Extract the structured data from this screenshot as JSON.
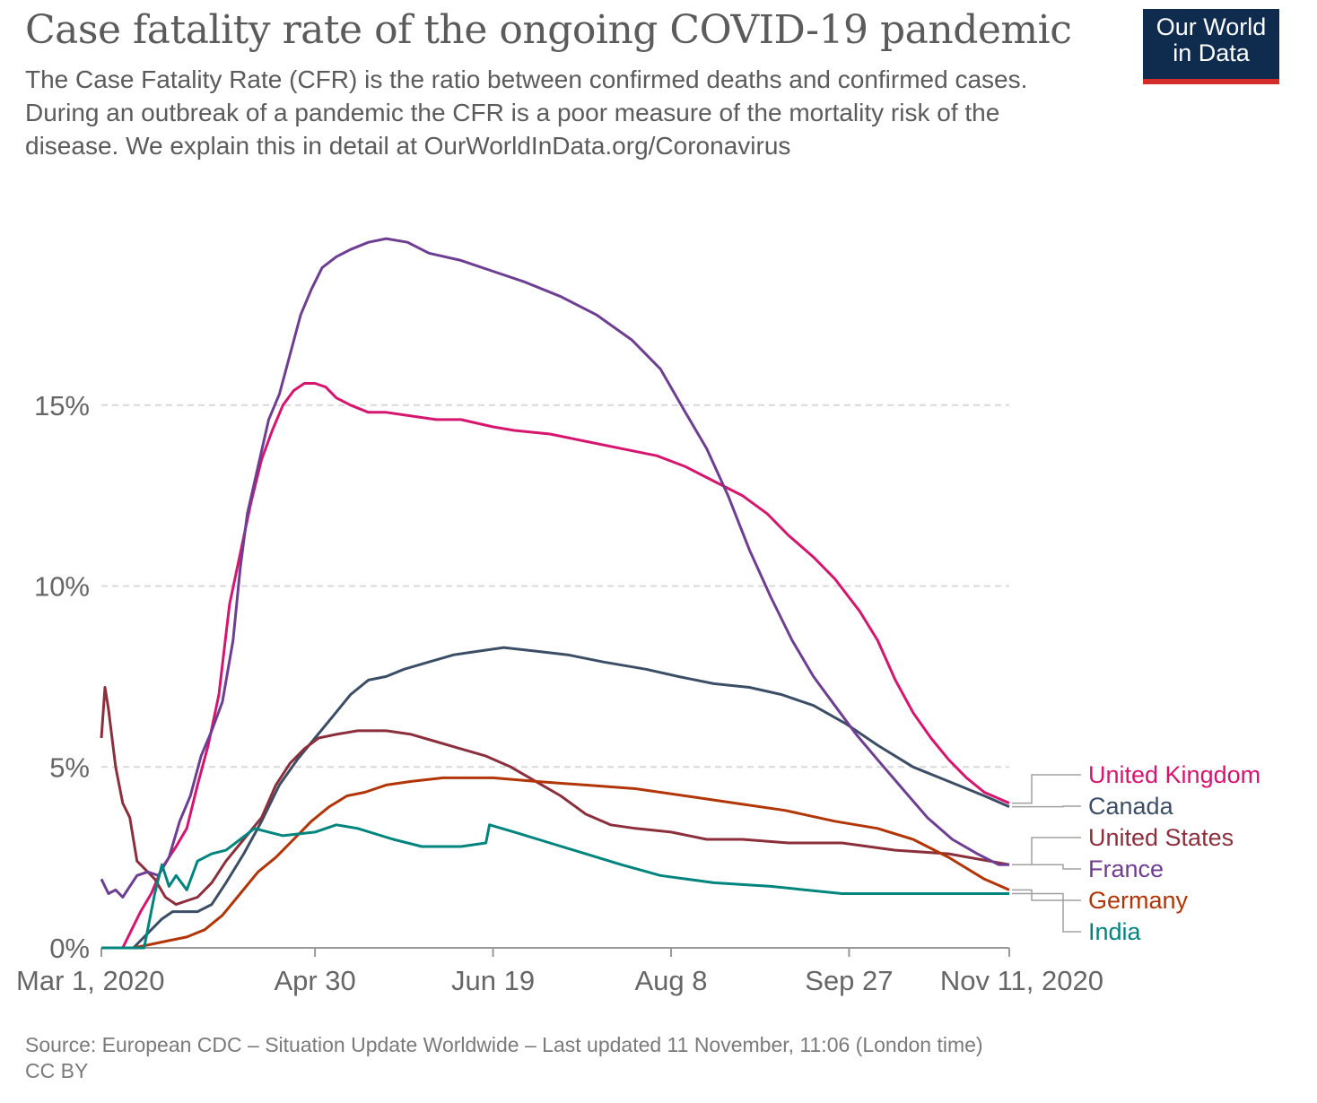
{
  "header": {
    "title": "Case fatality rate of the ongoing COVID-19 pandemic",
    "subtitle": "The Case Fatality Rate (CFR) is the ratio between confirmed deaths and confirmed cases. During an outbreak of a pandemic the CFR is a poor measure of the mortality risk of the disease. We explain this in detail at OurWorldInData.org/Coronavirus"
  },
  "logo": {
    "line1": "Our World",
    "line2": "in Data",
    "bg_color": "#0f2c4f",
    "accent_color": "#d42b2b"
  },
  "footer": {
    "source": "Source: European CDC – Situation Update Worldwide – Last updated 11 November, 11:06 (London time)",
    "license": "CC BY"
  },
  "chart_data": {
    "type": "line",
    "x_unit": "date",
    "x_range": [
      "2020-03-01",
      "2020-11-11"
    ],
    "x_ticks": [
      {
        "date": "2020-03-01",
        "label": "Mar 1, 2020"
      },
      {
        "date": "2020-04-30",
        "label": "Apr 30"
      },
      {
        "date": "2020-06-19",
        "label": "Jun 19"
      },
      {
        "date": "2020-08-08",
        "label": "Aug 8"
      },
      {
        "date": "2020-09-27",
        "label": "Sep 27"
      },
      {
        "date": "2020-11-11",
        "label": "Nov 11, 2020"
      }
    ],
    "ylim": [
      0,
      20
    ],
    "y_ticks": [
      {
        "value": 0,
        "label": "0%"
      },
      {
        "value": 5,
        "label": "5%"
      },
      {
        "value": 10,
        "label": "10%"
      },
      {
        "value": 15,
        "label": "15%"
      }
    ],
    "grid": "horizontal dashed",
    "legend_position": "right, at line ends",
    "series": [
      {
        "name": "United Kingdom",
        "color": "#d6156f",
        "points": [
          [
            "2020-03-01",
            0
          ],
          [
            "2020-03-07",
            0
          ],
          [
            "2020-03-10",
            0.6
          ],
          [
            "2020-03-12",
            1.0
          ],
          [
            "2020-03-15",
            1.5
          ],
          [
            "2020-03-18",
            2.2
          ],
          [
            "2020-03-22",
            2.8
          ],
          [
            "2020-03-25",
            3.3
          ],
          [
            "2020-03-28",
            4.5
          ],
          [
            "2020-03-31",
            5.6
          ],
          [
            "2020-04-03",
            7.0
          ],
          [
            "2020-04-06",
            9.5
          ],
          [
            "2020-04-09",
            10.9
          ],
          [
            "2020-04-12",
            12.3
          ],
          [
            "2020-04-15",
            13.5
          ],
          [
            "2020-04-18",
            14.3
          ],
          [
            "2020-04-21",
            15.0
          ],
          [
            "2020-04-24",
            15.4
          ],
          [
            "2020-04-27",
            15.6
          ],
          [
            "2020-04-30",
            15.6
          ],
          [
            "2020-05-03",
            15.5
          ],
          [
            "2020-05-06",
            15.2
          ],
          [
            "2020-05-10",
            15.0
          ],
          [
            "2020-05-15",
            14.8
          ],
          [
            "2020-05-20",
            14.8
          ],
          [
            "2020-05-27",
            14.7
          ],
          [
            "2020-06-03",
            14.6
          ],
          [
            "2020-06-10",
            14.6
          ],
          [
            "2020-06-19",
            14.4
          ],
          [
            "2020-06-25",
            14.3
          ],
          [
            "2020-07-05",
            14.2
          ],
          [
            "2020-07-15",
            14.0
          ],
          [
            "2020-07-25",
            13.8
          ],
          [
            "2020-08-04",
            13.6
          ],
          [
            "2020-08-12",
            13.3
          ],
          [
            "2020-08-20",
            12.9
          ],
          [
            "2020-08-28",
            12.5
          ],
          [
            "2020-09-04",
            12.0
          ],
          [
            "2020-09-10",
            11.4
          ],
          [
            "2020-09-17",
            10.8
          ],
          [
            "2020-09-23",
            10.2
          ],
          [
            "2020-09-30",
            9.3
          ],
          [
            "2020-10-05",
            8.5
          ],
          [
            "2020-10-10",
            7.4
          ],
          [
            "2020-10-15",
            6.5
          ],
          [
            "2020-10-20",
            5.8
          ],
          [
            "2020-10-25",
            5.2
          ],
          [
            "2020-10-30",
            4.7
          ],
          [
            "2020-11-04",
            4.3
          ],
          [
            "2020-11-11",
            4.0
          ]
        ]
      },
      {
        "name": "Canada",
        "color": "#3c4e66",
        "points": [
          [
            "2020-03-01",
            0
          ],
          [
            "2020-03-10",
            0
          ],
          [
            "2020-03-15",
            0.5
          ],
          [
            "2020-03-18",
            0.8
          ],
          [
            "2020-03-21",
            1.0
          ],
          [
            "2020-03-24",
            1.0
          ],
          [
            "2020-03-28",
            1.0
          ],
          [
            "2020-04-01",
            1.2
          ],
          [
            "2020-04-05",
            1.8
          ],
          [
            "2020-04-10",
            2.6
          ],
          [
            "2020-04-15",
            3.5
          ],
          [
            "2020-04-20",
            4.5
          ],
          [
            "2020-04-25",
            5.2
          ],
          [
            "2020-04-30",
            5.8
          ],
          [
            "2020-05-05",
            6.4
          ],
          [
            "2020-05-10",
            7.0
          ],
          [
            "2020-05-15",
            7.4
          ],
          [
            "2020-05-20",
            7.5
          ],
          [
            "2020-05-25",
            7.7
          ],
          [
            "2020-06-01",
            7.9
          ],
          [
            "2020-06-08",
            8.1
          ],
          [
            "2020-06-15",
            8.2
          ],
          [
            "2020-06-22",
            8.3
          ],
          [
            "2020-07-01",
            8.2
          ],
          [
            "2020-07-10",
            8.1
          ],
          [
            "2020-07-20",
            7.9
          ],
          [
            "2020-08-01",
            7.7
          ],
          [
            "2020-08-10",
            7.5
          ],
          [
            "2020-08-20",
            7.3
          ],
          [
            "2020-08-30",
            7.2
          ],
          [
            "2020-09-08",
            7.0
          ],
          [
            "2020-09-17",
            6.7
          ],
          [
            "2020-09-26",
            6.2
          ],
          [
            "2020-10-05",
            5.6
          ],
          [
            "2020-10-15",
            5.0
          ],
          [
            "2020-10-25",
            4.6
          ],
          [
            "2020-11-04",
            4.2
          ],
          [
            "2020-11-11",
            3.9
          ]
        ]
      },
      {
        "name": "United States",
        "color": "#8b2f3c",
        "points": [
          [
            "2020-03-01",
            5.8
          ],
          [
            "2020-03-02",
            7.2
          ],
          [
            "2020-03-03",
            6.6
          ],
          [
            "2020-03-05",
            5.0
          ],
          [
            "2020-03-07",
            4.0
          ],
          [
            "2020-03-09",
            3.6
          ],
          [
            "2020-03-11",
            2.4
          ],
          [
            "2020-03-13",
            2.2
          ],
          [
            "2020-03-16",
            1.9
          ],
          [
            "2020-03-19",
            1.4
          ],
          [
            "2020-03-22",
            1.2
          ],
          [
            "2020-03-25",
            1.3
          ],
          [
            "2020-03-28",
            1.4
          ],
          [
            "2020-04-01",
            1.8
          ],
          [
            "2020-04-05",
            2.4
          ],
          [
            "2020-04-10",
            3.0
          ],
          [
            "2020-04-15",
            3.6
          ],
          [
            "2020-04-19",
            4.5
          ],
          [
            "2020-04-23",
            5.1
          ],
          [
            "2020-04-27",
            5.5
          ],
          [
            "2020-05-01",
            5.8
          ],
          [
            "2020-05-06",
            5.9
          ],
          [
            "2020-05-12",
            6.0
          ],
          [
            "2020-05-20",
            6.0
          ],
          [
            "2020-05-27",
            5.9
          ],
          [
            "2020-06-03",
            5.7
          ],
          [
            "2020-06-10",
            5.5
          ],
          [
            "2020-06-17",
            5.3
          ],
          [
            "2020-06-24",
            5.0
          ],
          [
            "2020-07-01",
            4.6
          ],
          [
            "2020-07-08",
            4.2
          ],
          [
            "2020-07-15",
            3.7
          ],
          [
            "2020-07-22",
            3.4
          ],
          [
            "2020-07-29",
            3.3
          ],
          [
            "2020-08-08",
            3.2
          ],
          [
            "2020-08-18",
            3.0
          ],
          [
            "2020-08-28",
            3.0
          ],
          [
            "2020-09-10",
            2.9
          ],
          [
            "2020-09-25",
            2.9
          ],
          [
            "2020-10-10",
            2.7
          ],
          [
            "2020-10-25",
            2.6
          ],
          [
            "2020-11-11",
            2.3
          ]
        ]
      },
      {
        "name": "France",
        "color": "#6d3e91",
        "points": [
          [
            "2020-03-01",
            1.9
          ],
          [
            "2020-03-03",
            1.5
          ],
          [
            "2020-03-05",
            1.6
          ],
          [
            "2020-03-07",
            1.4
          ],
          [
            "2020-03-09",
            1.7
          ],
          [
            "2020-03-11",
            2.0
          ],
          [
            "2020-03-14",
            2.1
          ],
          [
            "2020-03-17",
            2.0
          ],
          [
            "2020-03-20",
            2.5
          ],
          [
            "2020-03-23",
            3.5
          ],
          [
            "2020-03-26",
            4.2
          ],
          [
            "2020-03-29",
            5.3
          ],
          [
            "2020-04-01",
            6.0
          ],
          [
            "2020-04-04",
            6.8
          ],
          [
            "2020-04-07",
            8.5
          ],
          [
            "2020-04-09",
            10.5
          ],
          [
            "2020-04-11",
            12.0
          ],
          [
            "2020-04-14",
            13.3
          ],
          [
            "2020-04-17",
            14.6
          ],
          [
            "2020-04-20",
            15.3
          ],
          [
            "2020-04-23",
            16.4
          ],
          [
            "2020-04-26",
            17.5
          ],
          [
            "2020-04-29",
            18.2
          ],
          [
            "2020-05-02",
            18.8
          ],
          [
            "2020-05-06",
            19.1
          ],
          [
            "2020-05-10",
            19.3
          ],
          [
            "2020-05-15",
            19.5
          ],
          [
            "2020-05-20",
            19.6
          ],
          [
            "2020-05-26",
            19.5
          ],
          [
            "2020-06-01",
            19.2
          ],
          [
            "2020-06-10",
            19.0
          ],
          [
            "2020-06-19",
            18.7
          ],
          [
            "2020-06-28",
            18.4
          ],
          [
            "2020-07-08",
            18.0
          ],
          [
            "2020-07-18",
            17.5
          ],
          [
            "2020-07-28",
            16.8
          ],
          [
            "2020-08-05",
            16.0
          ],
          [
            "2020-08-12",
            14.8
          ],
          [
            "2020-08-18",
            13.8
          ],
          [
            "2020-08-24",
            12.5
          ],
          [
            "2020-08-30",
            11.0
          ],
          [
            "2020-09-05",
            9.7
          ],
          [
            "2020-09-11",
            8.5
          ],
          [
            "2020-09-17",
            7.5
          ],
          [
            "2020-09-23",
            6.7
          ],
          [
            "2020-09-29",
            5.9
          ],
          [
            "2020-10-05",
            5.2
          ],
          [
            "2020-10-12",
            4.4
          ],
          [
            "2020-10-19",
            3.6
          ],
          [
            "2020-10-26",
            3.0
          ],
          [
            "2020-11-02",
            2.6
          ],
          [
            "2020-11-08",
            2.3
          ],
          [
            "2020-11-11",
            2.3
          ]
        ]
      },
      {
        "name": "Germany",
        "color": "#b13507",
        "points": [
          [
            "2020-03-01",
            0
          ],
          [
            "2020-03-10",
            0
          ],
          [
            "2020-03-15",
            0.1
          ],
          [
            "2020-03-20",
            0.2
          ],
          [
            "2020-03-25",
            0.3
          ],
          [
            "2020-03-30",
            0.5
          ],
          [
            "2020-04-04",
            0.9
          ],
          [
            "2020-04-09",
            1.5
          ],
          [
            "2020-04-14",
            2.1
          ],
          [
            "2020-04-19",
            2.5
          ],
          [
            "2020-04-24",
            3.0
          ],
          [
            "2020-04-29",
            3.5
          ],
          [
            "2020-05-04",
            3.9
          ],
          [
            "2020-05-09",
            4.2
          ],
          [
            "2020-05-14",
            4.3
          ],
          [
            "2020-05-20",
            4.5
          ],
          [
            "2020-05-27",
            4.6
          ],
          [
            "2020-06-05",
            4.7
          ],
          [
            "2020-06-19",
            4.7
          ],
          [
            "2020-07-01",
            4.6
          ],
          [
            "2020-07-15",
            4.5
          ],
          [
            "2020-07-29",
            4.4
          ],
          [
            "2020-08-12",
            4.2
          ],
          [
            "2020-08-26",
            4.0
          ],
          [
            "2020-09-09",
            3.8
          ],
          [
            "2020-09-23",
            3.5
          ],
          [
            "2020-10-05",
            3.3
          ],
          [
            "2020-10-15",
            3.0
          ],
          [
            "2020-10-25",
            2.5
          ],
          [
            "2020-11-04",
            1.9
          ],
          [
            "2020-11-11",
            1.6
          ]
        ]
      },
      {
        "name": "India",
        "color": "#00847e",
        "points": [
          [
            "2020-03-01",
            0
          ],
          [
            "2020-03-13",
            0
          ],
          [
            "2020-03-16",
            1.5
          ],
          [
            "2020-03-18",
            2.3
          ],
          [
            "2020-03-20",
            1.7
          ],
          [
            "2020-03-22",
            2.0
          ],
          [
            "2020-03-25",
            1.6
          ],
          [
            "2020-03-28",
            2.4
          ],
          [
            "2020-04-01",
            2.6
          ],
          [
            "2020-04-05",
            2.7
          ],
          [
            "2020-04-09",
            3.0
          ],
          [
            "2020-04-13",
            3.3
          ],
          [
            "2020-04-17",
            3.2
          ],
          [
            "2020-04-21",
            3.1
          ],
          [
            "2020-04-30",
            3.2
          ],
          [
            "2020-05-06",
            3.4
          ],
          [
            "2020-05-12",
            3.3
          ],
          [
            "2020-05-22",
            3.0
          ],
          [
            "2020-05-30",
            2.8
          ],
          [
            "2020-06-10",
            2.8
          ],
          [
            "2020-06-17",
            2.9
          ],
          [
            "2020-06-18",
            3.4
          ],
          [
            "2020-06-25",
            3.2
          ],
          [
            "2020-07-05",
            2.9
          ],
          [
            "2020-07-15",
            2.6
          ],
          [
            "2020-07-25",
            2.3
          ],
          [
            "2020-08-05",
            2.0
          ],
          [
            "2020-08-20",
            1.8
          ],
          [
            "2020-09-05",
            1.7
          ],
          [
            "2020-09-25",
            1.5
          ],
          [
            "2020-10-15",
            1.5
          ],
          [
            "2020-11-11",
            1.5
          ]
        ]
      }
    ],
    "legend_order": [
      "United Kingdom",
      "Canada",
      "United States",
      "France",
      "Germany",
      "India"
    ]
  }
}
